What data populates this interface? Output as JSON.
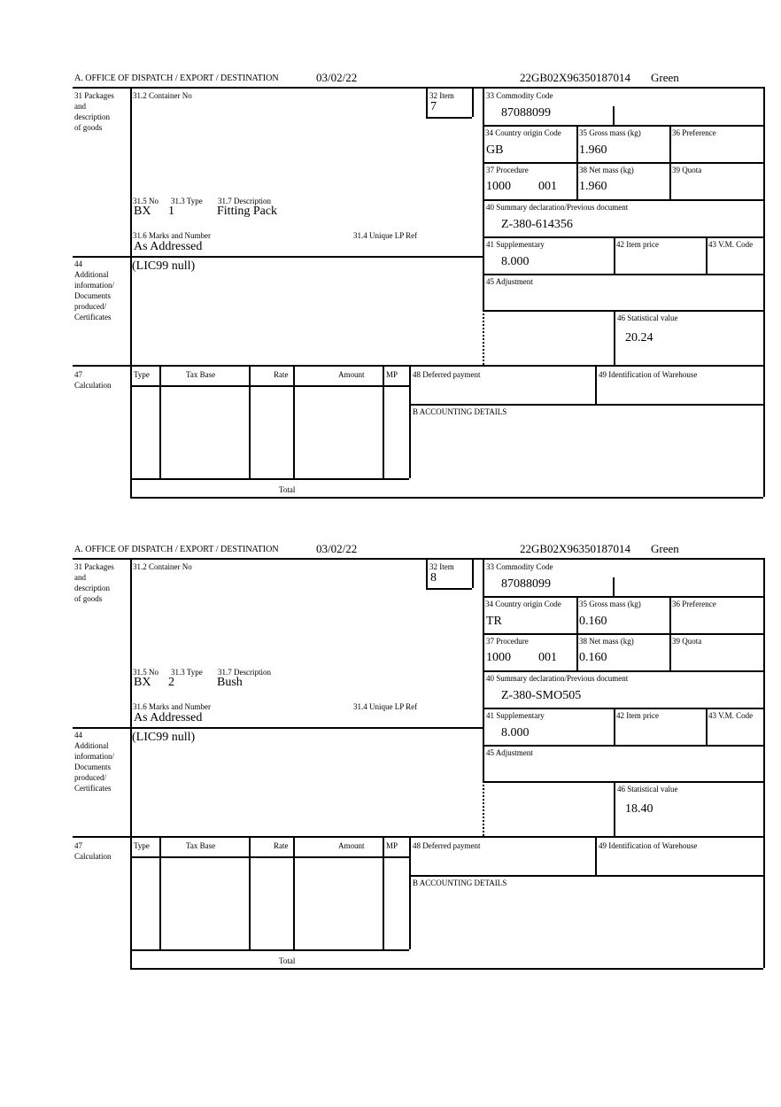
{
  "forms": [
    {
      "header": {
        "office": "A. OFFICE OF DISPATCH / EXPORT / DESTINATION",
        "date": "03/02/22",
        "reference": "22GB02X96350187014",
        "status": "Green"
      },
      "labels": {
        "packages": "31 Packages",
        "packages2": "and",
        "packages3": "description",
        "packages4": "of goods",
        "container": "31.2 Container No",
        "item": "32 Item",
        "no": "31.5 No",
        "type": "31.3 Type",
        "description": "31.7 Description",
        "marks": "31.6 Marks and Number",
        "unique": "31.4 Unique LP Ref",
        "additional": "44",
        "additional2": "Additional",
        "additional3": "information/",
        "additional4": "Documents",
        "additional5": "produced/",
        "additional6": "Certificates",
        "commodity": "33 Commodity Code",
        "origin": "34 Country origin Code",
        "gross": "35 Gross mass (kg)",
        "preference": "36 Preference",
        "procedure": "37 Procedure",
        "net": "38 Net mass (kg)",
        "quota": "39 Quota",
        "summary": "40 Summary declaration/Previous document",
        "supplementary": "41 Supplementary",
        "price": "42 Item price",
        "vm": "43 V.M. Code",
        "adjustment": "45 Adjustment",
        "statistical": "46 Statistical value",
        "calc": "47",
        "calc2": "Calculation",
        "col_type": "Type",
        "col_base": "Tax Base",
        "col_rate": "Rate",
        "col_amount": "Amount",
        "col_mp": "MP",
        "deferred": "48 Deferred payment",
        "warehouse": "49 Identification of Warehouse",
        "accounting": "B ACCOUNTING DETAILS",
        "total": "Total"
      },
      "values": {
        "item": "7",
        "no": "BX",
        "type": "1",
        "description": "Fitting Pack",
        "marks": "As Addressed",
        "additional": "(LIC99 null)",
        "commodity": "87088099",
        "origin": "GB",
        "gross": "1.960",
        "procedure": "1000",
        "procedure2": "001",
        "net": "1.960",
        "summary": "Z-380-614356",
        "supplementary": "8.000",
        "statistical": "20.24"
      }
    },
    {
      "header": {
        "office": "A. OFFICE OF DISPATCH / EXPORT / DESTINATION",
        "date": "03/02/22",
        "reference": "22GB02X96350187014",
        "status": "Green"
      },
      "labels": {
        "packages": "31 Packages",
        "packages2": "and",
        "packages3": "description",
        "packages4": "of goods",
        "container": "31.2 Container No",
        "item": "32 Item",
        "no": "31.5 No",
        "type": "31.3 Type",
        "description": "31.7 Description",
        "marks": "31.6 Marks and Number",
        "unique": "31.4 Unique LP Ref",
        "additional": "44",
        "additional2": "Additional",
        "additional3": "information/",
        "additional4": "Documents",
        "additional5": "produced/",
        "additional6": "Certificates",
        "commodity": "33 Commodity Code",
        "origin": "34 Country origin Code",
        "gross": "35 Gross mass (kg)",
        "preference": "36 Preference",
        "procedure": "37 Procedure",
        "net": "38 Net mass (kg)",
        "quota": "39 Quota",
        "summary": "40 Summary declaration/Previous document",
        "supplementary": "41 Supplementary",
        "price": "42 Item price",
        "vm": "43 V.M. Code",
        "adjustment": "45 Adjustment",
        "statistical": "46 Statistical value",
        "calc": "47",
        "calc2": "Calculation",
        "col_type": "Type",
        "col_base": "Tax Base",
        "col_rate": "Rate",
        "col_amount": "Amount",
        "col_mp": "MP",
        "deferred": "48 Deferred payment",
        "warehouse": "49 Identification of Warehouse",
        "accounting": "B ACCOUNTING DETAILS",
        "total": "Total"
      },
      "values": {
        "item": "8",
        "no": "BX",
        "type": "2",
        "description": "Bush",
        "marks": "As Addressed",
        "additional": "(LIC99 null)",
        "commodity": "87088099",
        "origin": "TR",
        "gross": "0.160",
        "procedure": "1000",
        "procedure2": "001",
        "net": "0.160",
        "summary": "Z-380-SMO505",
        "supplementary": "8.000",
        "statistical": "18.40"
      }
    }
  ]
}
